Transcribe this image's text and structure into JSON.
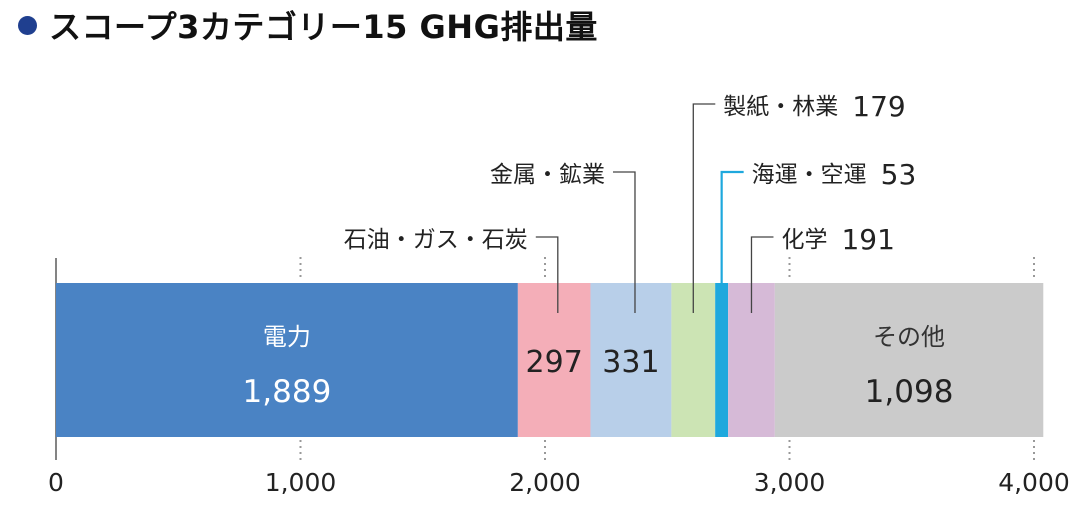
{
  "title": "スコープ3カテゴリー15 GHG排出量",
  "colors": {
    "title_dot": "#1f3f8f",
    "leader": "#444444",
    "tick_dots": "#999999",
    "axis": "#333333"
  },
  "chart_data": {
    "type": "bar",
    "orientation": "horizontal-stacked",
    "title": "スコープ3カテゴリー15 GHG排出量",
    "xlabel": "",
    "ylabel": "",
    "xlim": [
      0,
      4000
    ],
    "xticks": [
      "0",
      "1,000",
      "2,000",
      "3,000",
      "4,000"
    ],
    "tick_values": [
      0,
      1000,
      2000,
      3000,
      4000
    ],
    "series": [
      {
        "name": "電力",
        "value": 1889,
        "value_label": "1,889",
        "color": "#4a83c4",
        "label_style": "inside"
      },
      {
        "name": "石油・ガス・石炭",
        "value": 297,
        "value_label": "297",
        "color": "#f4aeb8",
        "label_style": "callout-inside-value"
      },
      {
        "name": "金属・鉱業",
        "value": 331,
        "value_label": "331",
        "color": "#b8cfe9",
        "label_style": "callout-inside-value"
      },
      {
        "name": "製紙・林業",
        "value": 179,
        "value_label": "179",
        "color": "#cce4b4",
        "label_style": "callout"
      },
      {
        "name": "海運・空運",
        "value": 53,
        "value_label": "53",
        "color": "#1ea8dd",
        "label_style": "callout"
      },
      {
        "name": "化学",
        "value": 191,
        "value_label": "191",
        "color": "#d6bad7",
        "label_style": "callout"
      },
      {
        "name": "その他",
        "value": 1098,
        "value_label": "1,098",
        "color": "#cbcbcb",
        "label_style": "inside"
      }
    ]
  }
}
